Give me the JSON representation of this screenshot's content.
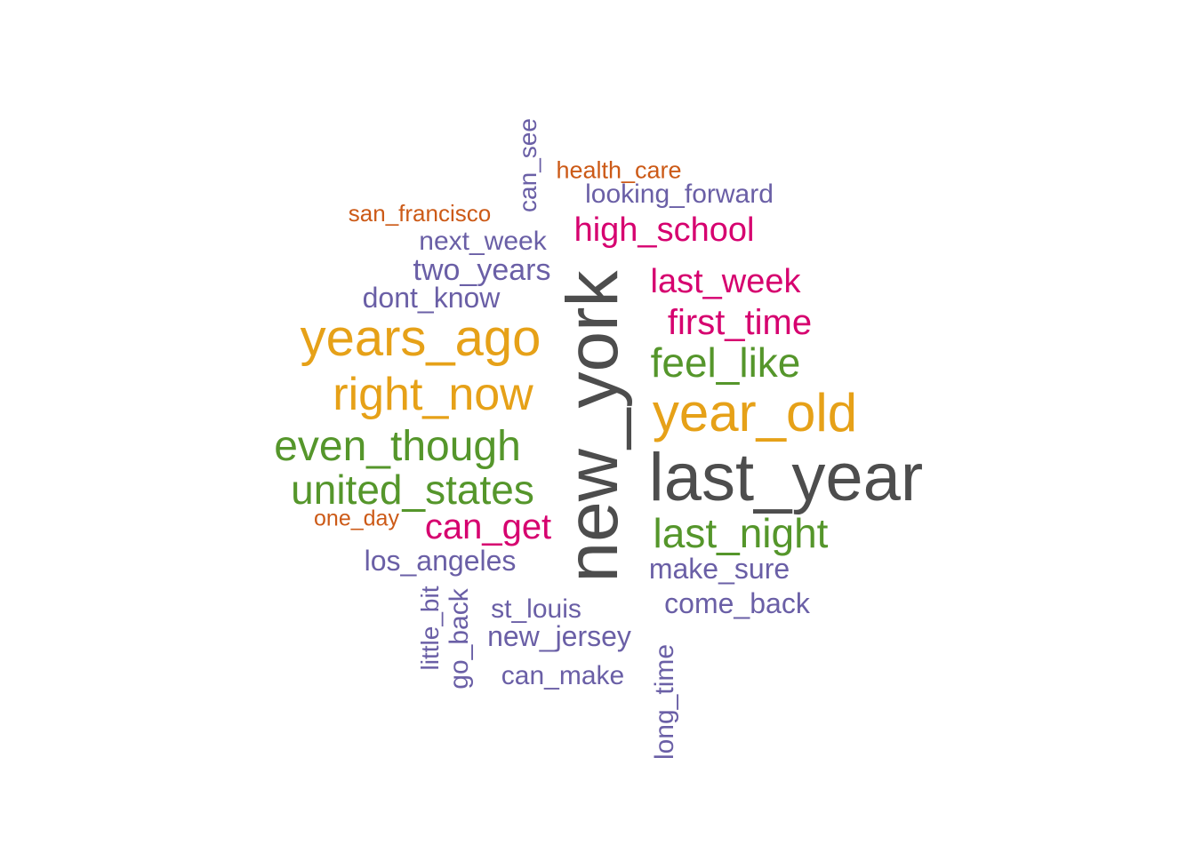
{
  "palette": {
    "grey": "#4d4d4d",
    "orange": "#e6a118",
    "green": "#55962b",
    "magenta": "#d6006f",
    "purple": "#6a5fa6",
    "rust": "#cc5a17"
  },
  "words": [
    {
      "text": "new_york",
      "color_key": "grey",
      "orientation": "vertical"
    },
    {
      "text": "last_year",
      "color_key": "grey",
      "orientation": "horizontal"
    },
    {
      "text": "year_old",
      "color_key": "orange",
      "orientation": "horizontal"
    },
    {
      "text": "years_ago",
      "color_key": "orange",
      "orientation": "horizontal"
    },
    {
      "text": "right_now",
      "color_key": "orange",
      "orientation": "horizontal"
    },
    {
      "text": "even_though",
      "color_key": "green",
      "orientation": "horizontal"
    },
    {
      "text": "united_states",
      "color_key": "green",
      "orientation": "horizontal"
    },
    {
      "text": "feel_like",
      "color_key": "green",
      "orientation": "horizontal"
    },
    {
      "text": "last_night",
      "color_key": "green",
      "orientation": "horizontal"
    },
    {
      "text": "high_school",
      "color_key": "magenta",
      "orientation": "horizontal"
    },
    {
      "text": "last_week",
      "color_key": "magenta",
      "orientation": "horizontal"
    },
    {
      "text": "first_time",
      "color_key": "magenta",
      "orientation": "horizontal"
    },
    {
      "text": "can_get",
      "color_key": "magenta",
      "orientation": "horizontal"
    },
    {
      "text": "looking_forward",
      "color_key": "purple",
      "orientation": "horizontal"
    },
    {
      "text": "next_week",
      "color_key": "purple",
      "orientation": "horizontal"
    },
    {
      "text": "two_years",
      "color_key": "purple",
      "orientation": "horizontal"
    },
    {
      "text": "dont_know",
      "color_key": "purple",
      "orientation": "horizontal"
    },
    {
      "text": "los_angeles",
      "color_key": "purple",
      "orientation": "horizontal"
    },
    {
      "text": "make_sure",
      "color_key": "purple",
      "orientation": "horizontal"
    },
    {
      "text": "come_back",
      "color_key": "purple",
      "orientation": "horizontal"
    },
    {
      "text": "st_louis",
      "color_key": "purple",
      "orientation": "horizontal"
    },
    {
      "text": "new_jersey",
      "color_key": "purple",
      "orientation": "horizontal"
    },
    {
      "text": "can_make",
      "color_key": "purple",
      "orientation": "horizontal"
    },
    {
      "text": "can_see",
      "color_key": "purple",
      "orientation": "vertical"
    },
    {
      "text": "little_bit",
      "color_key": "purple",
      "orientation": "vertical"
    },
    {
      "text": "go_back",
      "color_key": "purple",
      "orientation": "vertical"
    },
    {
      "text": "long_time",
      "color_key": "purple",
      "orientation": "vertical"
    },
    {
      "text": "health_care",
      "color_key": "rust",
      "orientation": "horizontal"
    },
    {
      "text": "san_francisco",
      "color_key": "rust",
      "orientation": "horizontal"
    },
    {
      "text": "one_day",
      "color_key": "rust",
      "orientation": "horizontal"
    }
  ]
}
